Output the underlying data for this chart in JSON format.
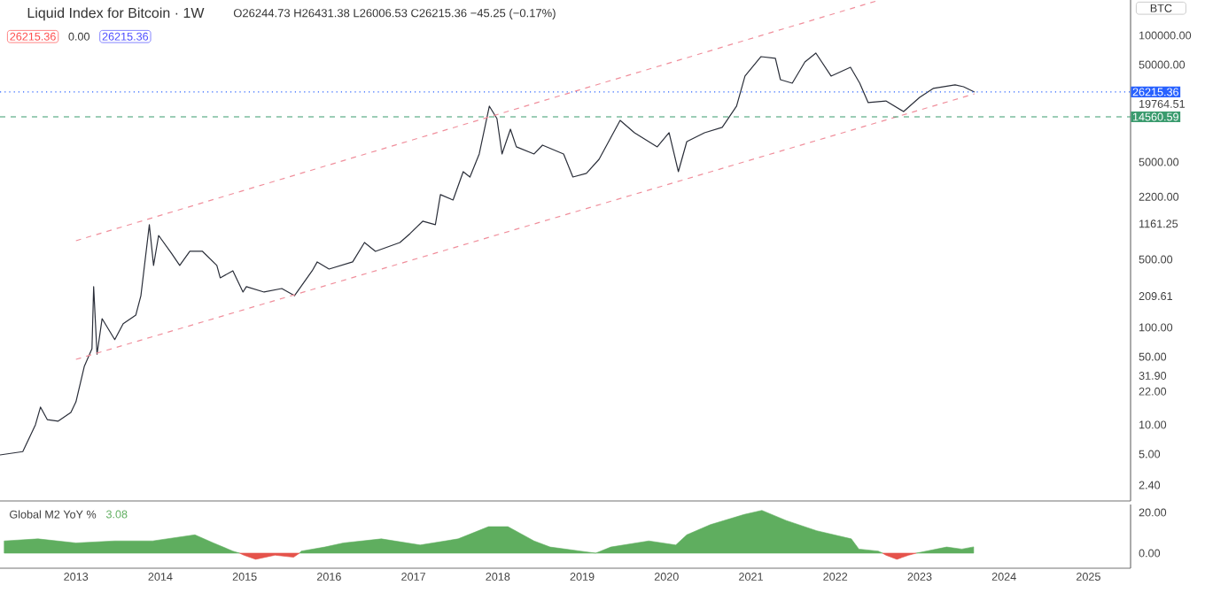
{
  "chart_data": [
    {
      "type": "line",
      "title": "Liquid Index for Bitcoin · 1W",
      "annotations": [
        "O26244.73 H26431.38 L26006.53 C26215.36 −45.25 (−0.17%)",
        "26215.36",
        "0.00",
        "26215.36",
        "BTC"
      ],
      "x": [
        2012.1,
        2012.37,
        2012.52,
        2012.58,
        2012.66,
        2012.79,
        2012.94,
        2013.0,
        2013.1,
        2013.19,
        2013.21,
        2013.25,
        2013.31,
        2013.46,
        2013.56,
        2013.71,
        2013.77,
        2013.87,
        2013.92,
        2013.98,
        2014.13,
        2014.23,
        2014.35,
        2014.5,
        2014.67,
        2014.71,
        2014.86,
        2014.98,
        2015.02,
        2015.23,
        2015.44,
        2015.59,
        2015.8,
        2015.86,
        2016.0,
        2016.28,
        2016.42,
        2016.55,
        2016.84,
        2016.96,
        2017.11,
        2017.26,
        2017.32,
        2017.47,
        2017.59,
        2017.67,
        2017.78,
        2017.9,
        2017.99,
        2018.05,
        2018.15,
        2018.22,
        2018.43,
        2018.53,
        2018.78,
        2018.89,
        2019.05,
        2019.2,
        2019.45,
        2019.62,
        2019.89,
        2020.03,
        2020.14,
        2020.24,
        2020.45,
        2020.66,
        2020.83,
        2020.93,
        2021.12,
        2021.29,
        2021.35,
        2021.49,
        2021.64,
        2021.77,
        2021.95,
        2022.18,
        2022.29,
        2022.39,
        2022.6,
        2022.81,
        2023.0,
        2023.16,
        2023.42,
        2023.52,
        2023.65
      ],
      "series": [
        {
          "color": "#2a2e39",
          "values": [
            4.9,
            5.3,
            10,
            15.2,
            11.3,
            10.9,
            13.4,
            17.2,
            40,
            60.5,
            262,
            53,
            123,
            75,
            109,
            134,
            212,
            1135,
            433,
            881,
            581,
            433,
            605,
            605,
            433,
            323,
            382,
            231,
            262,
            231,
            251,
            212,
            382,
            471,
            398,
            471,
            746,
            605,
            746,
            920,
            1233,
            1135,
            2312,
            2037,
            3981,
            3508,
            6053,
            18750,
            13970,
            6053,
            10870,
            7160,
            6053,
            7460,
            6053,
            3508,
            3820,
            5330,
            13400,
            10000,
            7160,
            10000,
            3981,
            8110,
            10000,
            11350,
            18750,
            38200,
            60500,
            58100,
            35100,
            32300,
            53300,
            65800,
            38200,
            47100,
            32300,
            20400,
            21200,
            16500,
            23100,
            28500,
            31000,
            29700,
            26215.36
          ]
        },
        {
          "type": "line",
          "line_style": "dashed",
          "color": "#f08f9c",
          "x": [
            2013.0,
            2022.52
          ],
          "values": [
            778,
            230000
          ]
        },
        {
          "type": "line",
          "line_style": "dashed",
          "color": "#f08f9c",
          "x": [
            2013.0,
            2023.65
          ],
          "values": [
            47,
            25100
          ]
        }
      ],
      "log": true,
      "xlim": [
        2012.1,
        2025.5
      ],
      "xticks": [
        2013,
        2014,
        2015,
        2016,
        2017,
        2018,
        2019,
        2020,
        2021,
        2022,
        2023,
        2024,
        2025
      ],
      "ylim": [
        1.65,
        231000
      ],
      "yticks": [
        {
          "value": 100000,
          "label": "100000.00"
        },
        {
          "value": 50000,
          "label": "50000.00"
        },
        19764.51,
        {
          "value": 5000,
          "label": "5000.00"
        },
        {
          "value": 2200,
          "label": "2200.00"
        },
        1161.25,
        {
          "value": 500,
          "label": "500.00"
        },
        209.61,
        {
          "value": 100,
          "label": "100.00"
        },
        {
          "value": 50,
          "label": "50.00"
        },
        {
          "value": 31.9,
          "label": "31.90"
        },
        {
          "value": 22,
          "label": "22.00"
        },
        {
          "value": 10,
          "label": "10.00"
        },
        {
          "value": 5,
          "label": "5.00"
        },
        {
          "value": 2.4,
          "label": "2.40"
        }
      ],
      "ref_lines": [
        {
          "axis": "y",
          "value": 26215.36,
          "label": "26215.36",
          "color": "#2962ff",
          "line_style": "dotted"
        },
        {
          "axis": "y",
          "value": 14560.59,
          "label": "14560.59",
          "color": "#3a9b6e",
          "line_style": "dashed"
        }
      ],
      "tick_labels": "y"
    },
    {
      "type": "area",
      "title": "Global M2 YoY %",
      "annotations": [
        "3.08"
      ],
      "x": [
        2012.15,
        2012.55,
        2013.0,
        2013.46,
        2013.91,
        2014.41,
        2014.63,
        2014.86,
        2014.94,
        2014.99,
        2015.13,
        2015.36,
        2015.58,
        2015.65,
        2015.67,
        2015.95,
        2016.17,
        2016.62,
        2017.08,
        2017.53,
        2017.89,
        2018.12,
        2018.43,
        2018.62,
        2018.98,
        2019.16,
        2019.34,
        2019.79,
        2020.11,
        2020.24,
        2020.52,
        2020.92,
        2021.13,
        2021.42,
        2021.78,
        2022.19,
        2022.28,
        2022.51,
        2022.56,
        2022.6,
        2022.73,
        2022.87,
        2022.96,
        2023.32,
        2023.5,
        2023.64
      ],
      "series": [
        {
          "color": "#5fae5f",
          "values": [
            6,
            7,
            5,
            6,
            6,
            9,
            5,
            1,
            0,
            null,
            null,
            null,
            null,
            0,
            1,
            3,
            5,
            7,
            4,
            7,
            13,
            13,
            6,
            3,
            1,
            0,
            3,
            6,
            4,
            9,
            14,
            19,
            21,
            16,
            11,
            7,
            2,
            1,
            0,
            null,
            null,
            null,
            0,
            3,
            2,
            3.08
          ]
        },
        {
          "color": "#e5534b",
          "values": [
            null,
            null,
            null,
            null,
            null,
            null,
            null,
            null,
            0,
            -1,
            -3,
            -1,
            -2,
            0,
            null,
            null,
            null,
            null,
            null,
            null,
            null,
            null,
            null,
            null,
            null,
            null,
            null,
            null,
            null,
            null,
            null,
            null,
            null,
            null,
            null,
            null,
            null,
            null,
            0,
            -1,
            -3,
            -1,
            0,
            null,
            null,
            null
          ]
        }
      ],
      "xlim": [
        2012.1,
        2025.5
      ],
      "xticks": [
        2013,
        2014,
        2015,
        2016,
        2017,
        2018,
        2019,
        2020,
        2021,
        2022,
        2023,
        2024,
        2025
      ],
      "ylim": [
        -7.4,
        23.9
      ],
      "yticks": [
        {
          "value": 0,
          "label": "0.00"
        },
        {
          "value": 20,
          "label": "20.00"
        }
      ]
    }
  ]
}
